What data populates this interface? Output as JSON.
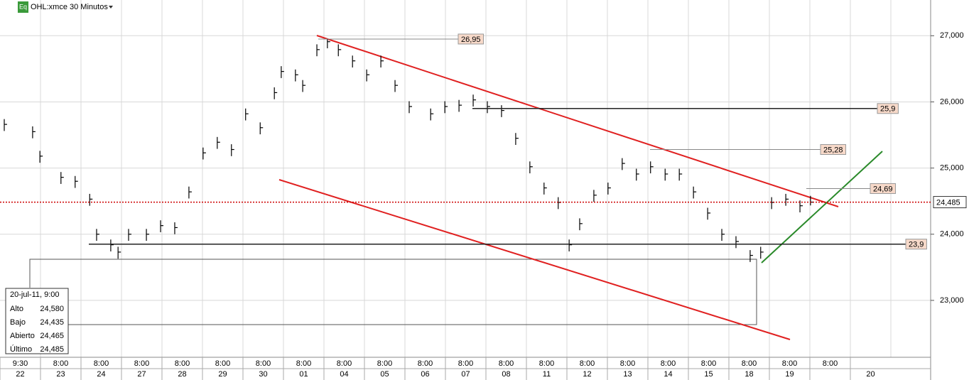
{
  "chart_data": {
    "type": "ohlc",
    "badge": "Eq",
    "title": "OHL:xmce 30 Minutos",
    "color": "#000000",
    "x": [
      0.0,
      0.7,
      0.88,
      1.4,
      1.75,
      2.11,
      2.28,
      2.63,
      2.81,
      3.07,
      3.51,
      3.86,
      4.21,
      4.56,
      4.91,
      5.26,
      5.61,
      5.96,
      6.32,
      6.67,
      6.84,
      7.19,
      7.37,
      7.72,
      7.98,
      8.25,
      8.6,
      8.95,
      9.3,
      9.65,
      10.0,
      10.53,
      10.88,
      11.23,
      11.58,
      11.93,
      12.28,
      12.63,
      12.98,
      13.33,
      13.68,
      13.95,
      14.21,
      14.56,
      14.91,
      15.26,
      15.61,
      15.96,
      16.32,
      16.67,
      17.02,
      17.37,
      17.72,
      18.07,
      18.42,
      18.68,
      18.95,
      19.3,
      19.65,
      19.91
    ],
    "high": [
      25.74,
      25.63,
      25.26,
      24.94,
      24.88,
      24.61,
      24.08,
      23.92,
      23.81,
      24.08,
      24.08,
      24.21,
      24.18,
      24.72,
      25.31,
      25.47,
      25.36,
      25.9,
      25.69,
      26.22,
      26.54,
      26.49,
      26.33,
      26.87,
      26.95,
      26.87,
      26.7,
      26.49,
      26.7,
      26.33,
      26.01,
      25.9,
      26.01,
      26.03,
      26.11,
      26.01,
      25.95,
      25.53,
      25.1,
      24.78,
      24.56,
      23.92,
      24.24,
      24.67,
      24.78,
      25.15,
      24.99,
      25.1,
      24.99,
      24.99,
      24.72,
      24.4,
      24.08,
      23.97,
      23.76,
      23.81,
      24.56,
      24.61,
      24.51,
      24.58
    ],
    "low": [
      25.56,
      25.45,
      25.08,
      24.76,
      24.7,
      24.43,
      23.9,
      23.74,
      23.63,
      23.9,
      23.9,
      24.03,
      24.0,
      24.54,
      25.13,
      25.29,
      25.18,
      25.72,
      25.51,
      26.04,
      26.36,
      26.31,
      26.15,
      26.69,
      26.81,
      26.69,
      26.52,
      26.31,
      26.52,
      26.15,
      25.83,
      25.72,
      25.83,
      25.85,
      25.93,
      25.83,
      25.77,
      25.35,
      24.92,
      24.6,
      24.38,
      23.74,
      24.06,
      24.49,
      24.6,
      24.97,
      24.81,
      24.92,
      24.81,
      24.81,
      24.54,
      24.22,
      23.9,
      23.79,
      23.58,
      23.63,
      24.38,
      24.43,
      24.33,
      24.435
    ],
    "close": [
      25.66,
      25.55,
      25.18,
      24.86,
      24.8,
      24.53,
      24.0,
      23.84,
      23.73,
      24.0,
      24.0,
      24.13,
      24.1,
      24.64,
      25.23,
      25.39,
      25.28,
      25.82,
      25.61,
      26.14,
      26.46,
      26.41,
      26.25,
      26.79,
      26.91,
      26.79,
      26.62,
      26.41,
      26.62,
      26.25,
      25.93,
      25.82,
      25.93,
      25.95,
      26.03,
      25.93,
      25.87,
      25.45,
      25.02,
      24.7,
      24.48,
      23.84,
      24.16,
      24.59,
      24.7,
      25.07,
      24.91,
      25.02,
      24.91,
      24.91,
      24.64,
      24.32,
      24.0,
      23.89,
      23.68,
      23.73,
      24.48,
      24.53,
      24.43,
      24.485
    ],
    "times": [
      "9:30",
      "8:00",
      "8:00",
      "8:00",
      "8:00",
      "8:00",
      "8:00",
      "8:00",
      "8:00",
      "8:00",
      "8:00",
      "8:00",
      "8:00",
      "8:00",
      "8:00",
      "8:00",
      "8:00",
      "8:00",
      "8:00",
      "8:00",
      "8:00",
      null
    ],
    "dates": [
      "22",
      "23",
      "24",
      "27",
      "28",
      "29",
      "30",
      "01",
      "04",
      "05",
      "06",
      "07",
      "08",
      "11",
      "12",
      "13",
      "14",
      "15",
      "18",
      "19",
      null,
      "20"
    ],
    "ylim": [
      22.14,
      27.54
    ],
    "yticks": [
      {
        "value": 23,
        "label": "23,000"
      },
      {
        "value": 24,
        "label": "24,000"
      },
      {
        "value": 25,
        "label": "25,000"
      },
      {
        "value": 26,
        "label": "26,000"
      },
      {
        "value": 27,
        "label": "27,000"
      }
    ],
    "grid": true,
    "levels": [
      {
        "value": 26.95,
        "label": "26,95"
      },
      {
        "value": 25.9,
        "label": "25,9"
      },
      {
        "value": 25.28,
        "label": "25,28"
      },
      {
        "value": 24.69,
        "label": "24,69"
      },
      {
        "value": 23.85,
        "label": "23,9"
      }
    ],
    "last_price": {
      "value": 24.485,
      "label": "24,485",
      "color": "#cc0000"
    }
  },
  "info_box": {
    "date": "20-jul-11, 9:00",
    "rows": [
      {
        "label": "Alto",
        "value": "24,580"
      },
      {
        "label": "Bajo",
        "value": "24,435"
      },
      {
        "label": "Abierto",
        "value": "24,465"
      },
      {
        "label": "Último",
        "value": "24,485"
      }
    ]
  }
}
